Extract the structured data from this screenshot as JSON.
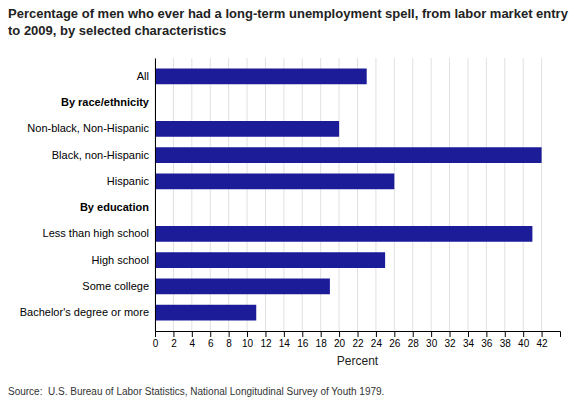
{
  "chart_data": {
    "type": "bar",
    "orientation": "horizontal",
    "title": "Percentage of men who ever had a long-term unemployment spell, from labor market entry to 2009, by selected characteristics",
    "categories": [
      "All",
      "By race/ethnicity",
      "Non-black, Non-Hispanic",
      "Black, non-Hispanic",
      "Hispanic",
      "By education",
      "Less than high school",
      "High school",
      "Some college",
      "Bachelor's degree or more"
    ],
    "values": [
      23,
      null,
      20,
      42,
      26,
      null,
      41,
      25,
      19,
      11
    ],
    "color": "#1c1c99",
    "xlabel": "Percent",
    "annotations": [
      "Source:  U.S. Bureau of Labor Statistics, National Longitudinal Survey of Youth 1979."
    ],
    "xlim": [
      0,
      44
    ],
    "xticks": [
      0,
      2,
      4,
      6,
      8,
      10,
      12,
      14,
      16,
      18,
      20,
      22,
      24,
      26,
      28,
      30,
      32,
      34,
      36,
      38,
      40,
      42
    ],
    "grid": true
  }
}
